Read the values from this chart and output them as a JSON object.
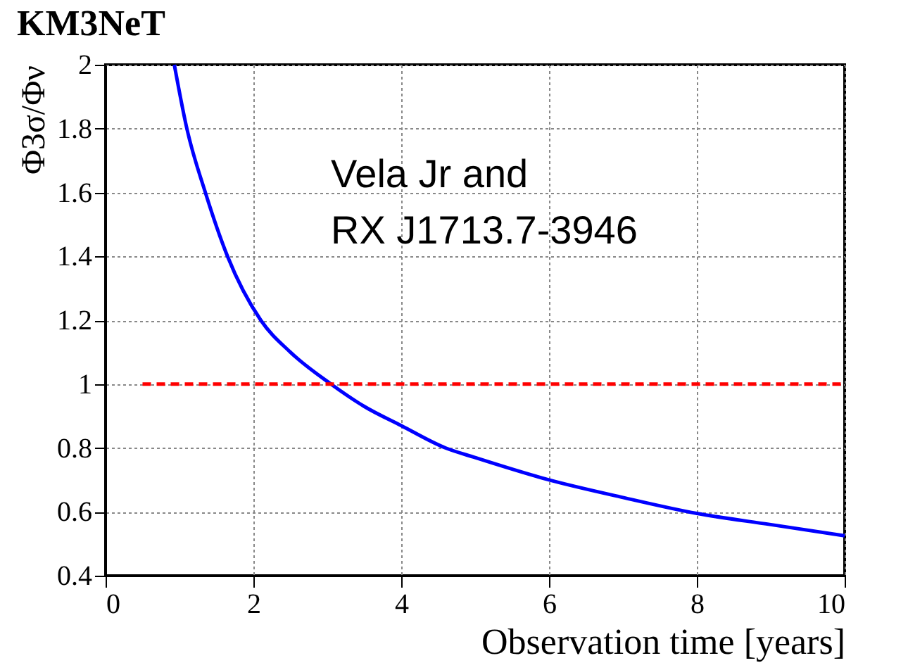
{
  "chart_data": {
    "type": "line",
    "title": "KM3NeT",
    "xlabel": "Observation time [years]",
    "ylabel": "Φ3σ/Φν",
    "series": [
      {
        "color": "#0000ff",
        "line_style": "solid",
        "x": [
          0.93,
          1.1,
          1.35,
          1.65,
          2.1,
          2.5,
          3.05,
          3.5,
          4.0,
          4.6,
          5.0,
          6.0,
          7.0,
          8.0,
          9.0,
          10.0
        ],
        "values": [
          2.0,
          1.8,
          1.6,
          1.4,
          1.2,
          1.1,
          1.0,
          0.93,
          0.87,
          0.8,
          0.77,
          0.7,
          0.645,
          0.595,
          0.56,
          0.525
        ]
      },
      {
        "color": "#ff0000",
        "line_style": "dashed",
        "x": [
          0.5,
          10.0
        ],
        "values": [
          1.0,
          1.0
        ]
      }
    ],
    "xlim": [
      0,
      10
    ],
    "xticks": [
      0,
      2,
      4,
      6,
      8,
      10
    ],
    "ylim": [
      0.4,
      2
    ],
    "yticks": [
      0.4,
      0.6,
      0.8,
      1,
      1.2,
      1.4,
      1.6,
      1.8,
      2
    ],
    "grid": true,
    "marker": "none",
    "annotations": [
      "Vela Jr and\nRX J1713.7-3946"
    ]
  }
}
